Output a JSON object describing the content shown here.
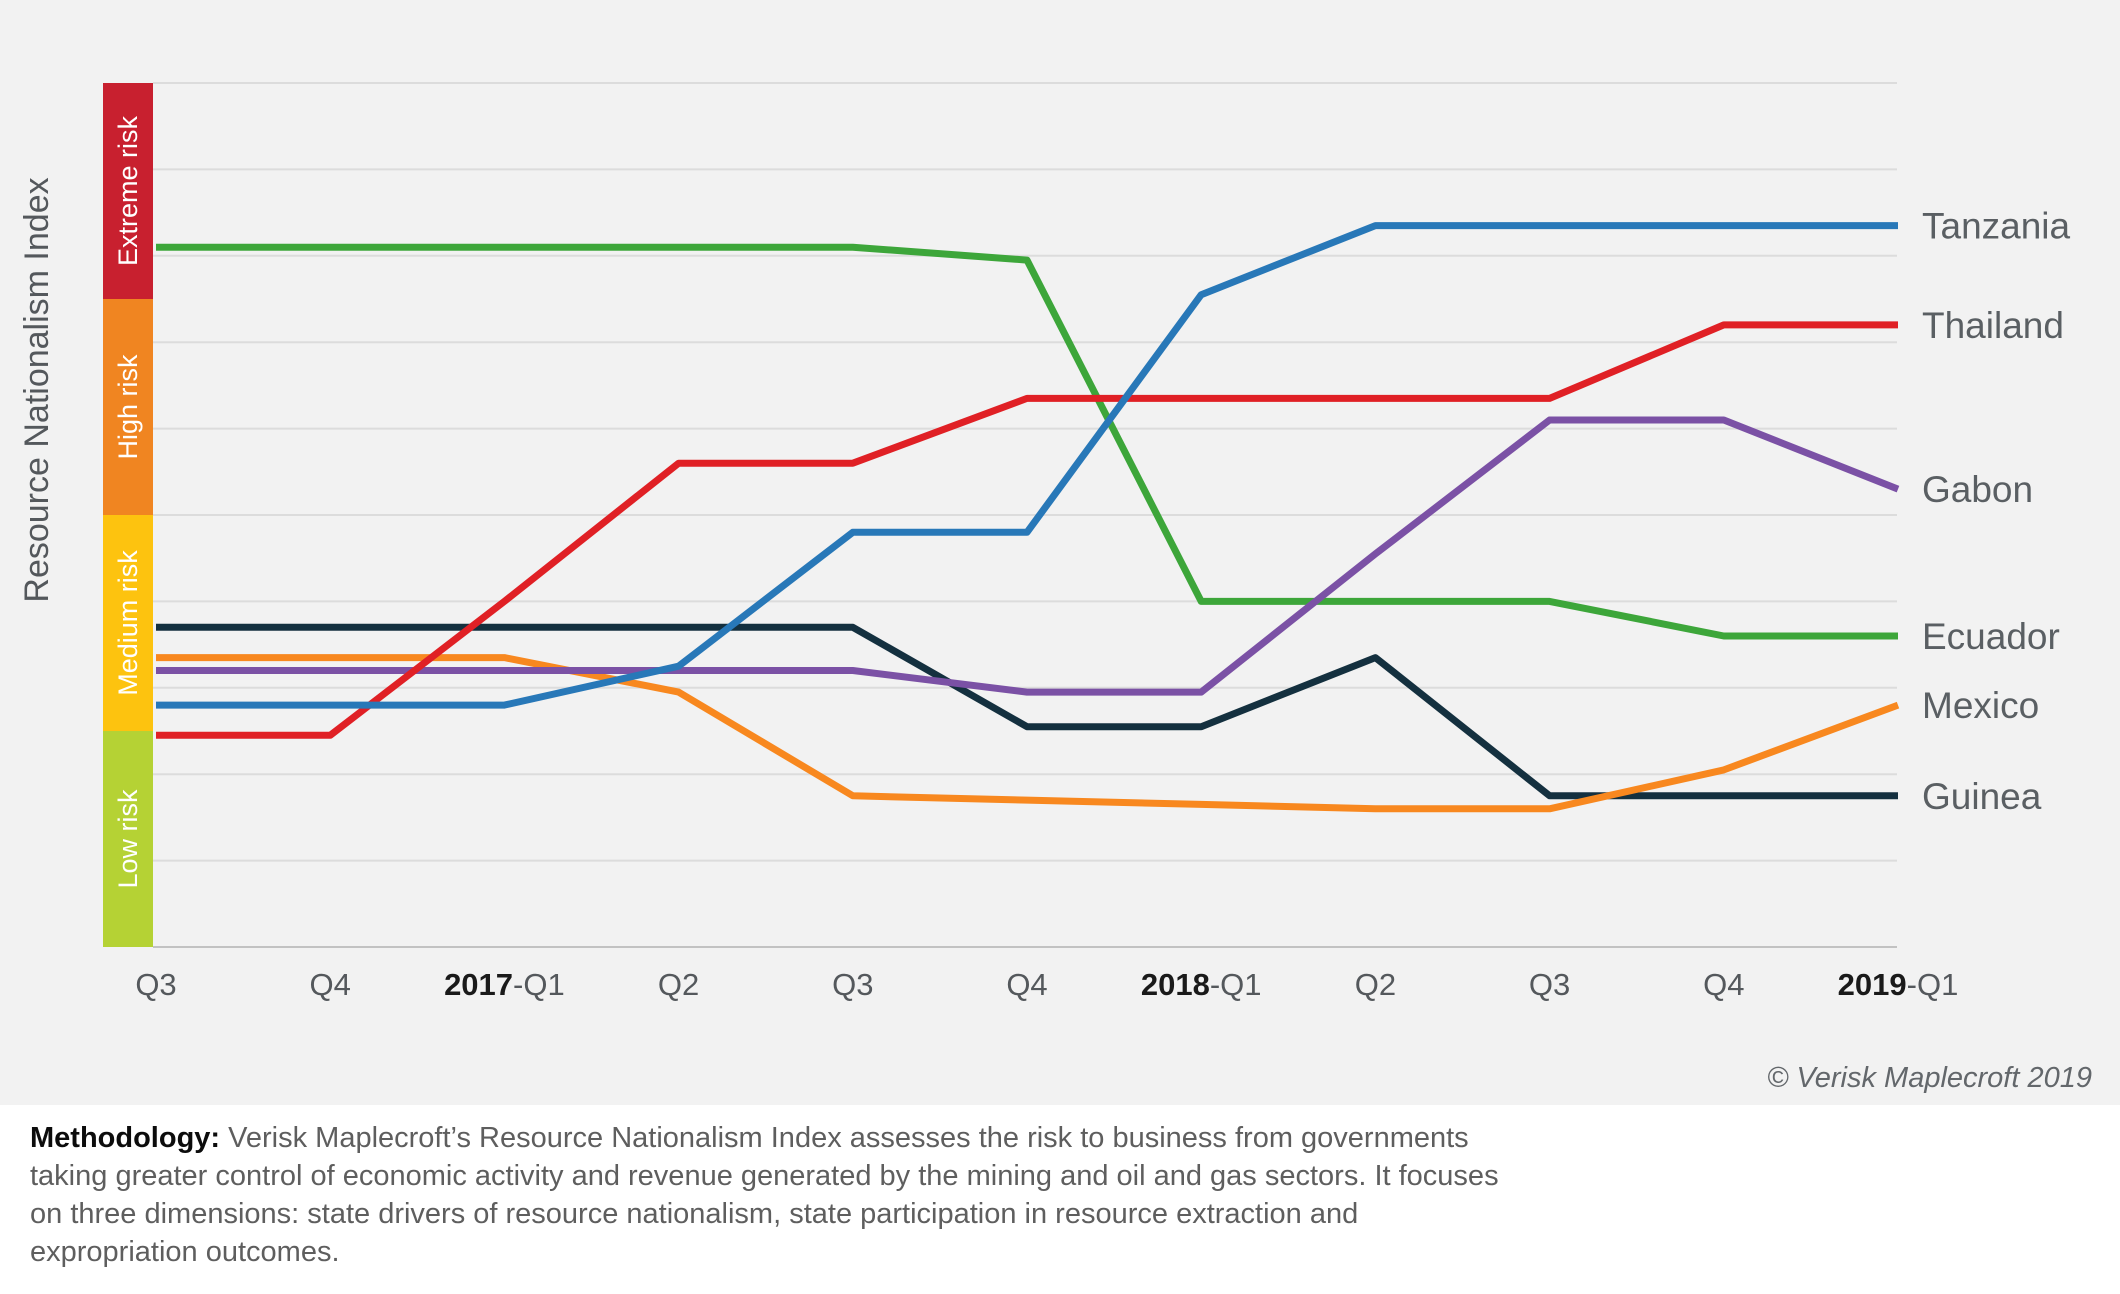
{
  "page": {
    "copyright": "© Verisk Maplecroft 2019",
    "methodology_label": "Methodology:",
    "methodology_text": " Verisk Maplecroft’s Resource Nationalism Index assesses the risk to business from governments taking greater control of economic activity and revenue generated by the mining and oil and gas sectors. It focuses on three dimensions: state drivers of resource nationalism, state participation in resource extraction and expropriation outcomes."
  },
  "chart_data": {
    "type": "line",
    "y_axis_title": "Resource Nationalism Index",
    "ylim": [
      0,
      10
    ],
    "gridline_step": 1,
    "grid": "horizontal gridlines on, no vertical gridlines",
    "legend_position": "labels at right end of each line",
    "x_tick_labels": [
      "Q3",
      "Q4",
      "2017-Q1",
      "Q2",
      "Q3",
      "Q4",
      "2018-Q1",
      "Q2",
      "Q3",
      "Q4",
      "2019-Q1"
    ],
    "risk_bands": [
      {
        "label": "Extreme risk",
        "range": [
          7.5,
          10
        ],
        "color": "#c8202f"
      },
      {
        "label": "High risk",
        "range": [
          5,
          7.5
        ],
        "color": "#f08521"
      },
      {
        "label": "Medium risk",
        "range": [
          2.5,
          5
        ],
        "color": "#fdc30f"
      },
      {
        "label": "Low risk",
        "range": [
          0,
          2.5
        ],
        "color": "#b5d234"
      }
    ],
    "series": [
      {
        "name": "Ecuador",
        "color": "#3da63a",
        "values": [
          8.1,
          8.1,
          8.1,
          8.1,
          8.1,
          7.95,
          4.0,
          4.0,
          4.0,
          3.6,
          3.6
        ]
      },
      {
        "name": "Guinea",
        "color": "#14303f",
        "values": [
          3.7,
          3.7,
          3.7,
          3.7,
          3.7,
          2.55,
          2.55,
          3.35,
          1.75,
          1.75,
          1.75
        ]
      },
      {
        "name": "Mexico",
        "color": "#f8881f",
        "values": [
          3.35,
          3.35,
          3.35,
          2.95,
          1.75,
          1.7,
          1.65,
          1.6,
          1.6,
          2.05,
          2.8
        ]
      },
      {
        "name": "Gabon",
        "color": "#7b51a5",
        "values": [
          3.2,
          3.2,
          3.2,
          3.2,
          3.2,
          2.95,
          2.95,
          4.55,
          6.1,
          6.1,
          5.3
        ]
      },
      {
        "name": "Thailand",
        "color": "#e02025",
        "values": [
          2.45,
          2.45,
          4.0,
          5.6,
          5.6,
          6.35,
          6.35,
          6.35,
          6.35,
          7.2,
          7.2
        ]
      },
      {
        "name": "Tanzania",
        "color": "#2878b8",
        "values": [
          2.8,
          2.8,
          2.8,
          3.25,
          4.8,
          4.8,
          7.55,
          8.35,
          8.35,
          8.35,
          8.35
        ]
      }
    ],
    "style_colors": {
      "chart_background": "#f2f2f2",
      "gridline": "#dcdcdc",
      "axis_line": "#c2c2c2",
      "tick_label": "#54585c",
      "series_label": "#5a5f63",
      "band_label_text": "#ffffff",
      "y_axis_title": "#54585c"
    }
  }
}
